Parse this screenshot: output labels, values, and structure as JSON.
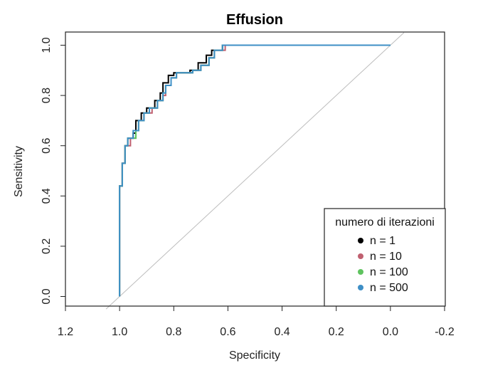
{
  "chart_data": {
    "type": "line",
    "title": "Effusion",
    "xlabel": "Specificity",
    "ylabel": "Sensitivity",
    "xlim": [
      1.2,
      -0.2
    ],
    "ylim": [
      0,
      1
    ],
    "x_reversed": true,
    "x_ticks": [
      {
        "value": 1.2,
        "label": "1.2"
      },
      {
        "value": 1.0,
        "label": "1.0"
      },
      {
        "value": 0.8,
        "label": "0.8"
      },
      {
        "value": 0.6,
        "label": "0.6"
      },
      {
        "value": 0.4,
        "label": "0.4"
      },
      {
        "value": 0.2,
        "label": "0.2"
      },
      {
        "value": 0.0,
        "label": "0.0"
      },
      {
        "value": -0.2,
        "label": "-0.2"
      }
    ],
    "y_ticks": [
      {
        "value": 0.0,
        "label": "0.0"
      },
      {
        "value": 0.2,
        "label": "0.2"
      },
      {
        "value": 0.4,
        "label": "0.4"
      },
      {
        "value": 0.6,
        "label": "0.6"
      },
      {
        "value": 0.8,
        "label": "0.8"
      },
      {
        "value": 1.0,
        "label": "1.0"
      }
    ],
    "reference_line": {
      "from": [
        1.0,
        0.0
      ],
      "to": [
        0.0,
        1.0
      ],
      "color": "#bdbdbd"
    },
    "grid": false,
    "legend": {
      "title": "numero di iterazioni",
      "placement": "bottom-right"
    },
    "series": [
      {
        "name": "n = 1",
        "color": "#000000",
        "points": [
          [
            1.0,
            0.0
          ],
          [
            1.0,
            0.44
          ],
          [
            0.99,
            0.44
          ],
          [
            0.99,
            0.53
          ],
          [
            0.98,
            0.53
          ],
          [
            0.98,
            0.6
          ],
          [
            0.97,
            0.6
          ],
          [
            0.97,
            0.63
          ],
          [
            0.95,
            0.63
          ],
          [
            0.95,
            0.65
          ],
          [
            0.94,
            0.65
          ],
          [
            0.94,
            0.7
          ],
          [
            0.92,
            0.7
          ],
          [
            0.92,
            0.73
          ],
          [
            0.9,
            0.73
          ],
          [
            0.9,
            0.75
          ],
          [
            0.87,
            0.75
          ],
          [
            0.87,
            0.78
          ],
          [
            0.85,
            0.78
          ],
          [
            0.85,
            0.81
          ],
          [
            0.84,
            0.81
          ],
          [
            0.84,
            0.85
          ],
          [
            0.82,
            0.85
          ],
          [
            0.82,
            0.88
          ],
          [
            0.8,
            0.88
          ],
          [
            0.8,
            0.89
          ],
          [
            0.74,
            0.89
          ],
          [
            0.74,
            0.9
          ],
          [
            0.71,
            0.9
          ],
          [
            0.71,
            0.93
          ],
          [
            0.68,
            0.93
          ],
          [
            0.68,
            0.96
          ],
          [
            0.66,
            0.96
          ],
          [
            0.66,
            0.98
          ],
          [
            0.62,
            0.98
          ],
          [
            0.62,
            1.0
          ],
          [
            0.0,
            1.0
          ]
        ]
      },
      {
        "name": "n = 10",
        "color": "#c06070",
        "points": [
          [
            1.0,
            0.0
          ],
          [
            1.0,
            0.44
          ],
          [
            0.99,
            0.44
          ],
          [
            0.99,
            0.53
          ],
          [
            0.98,
            0.53
          ],
          [
            0.98,
            0.6
          ],
          [
            0.96,
            0.6
          ],
          [
            0.96,
            0.63
          ],
          [
            0.94,
            0.63
          ],
          [
            0.94,
            0.66
          ],
          [
            0.93,
            0.66
          ],
          [
            0.93,
            0.7
          ],
          [
            0.91,
            0.7
          ],
          [
            0.91,
            0.73
          ],
          [
            0.88,
            0.73
          ],
          [
            0.88,
            0.75
          ],
          [
            0.86,
            0.75
          ],
          [
            0.86,
            0.78
          ],
          [
            0.84,
            0.78
          ],
          [
            0.84,
            0.8
          ],
          [
            0.83,
            0.8
          ],
          [
            0.83,
            0.84
          ],
          [
            0.81,
            0.84
          ],
          [
            0.81,
            0.87
          ],
          [
            0.79,
            0.87
          ],
          [
            0.79,
            0.89
          ],
          [
            0.73,
            0.89
          ],
          [
            0.73,
            0.9
          ],
          [
            0.7,
            0.9
          ],
          [
            0.7,
            0.92
          ],
          [
            0.67,
            0.92
          ],
          [
            0.67,
            0.95
          ],
          [
            0.65,
            0.95
          ],
          [
            0.65,
            0.98
          ],
          [
            0.61,
            0.98
          ],
          [
            0.61,
            1.0
          ],
          [
            0.0,
            1.0
          ]
        ]
      },
      {
        "name": "n = 100",
        "color": "#5fc35f",
        "points": [
          [
            1.0,
            0.0
          ],
          [
            1.0,
            0.44
          ],
          [
            0.99,
            0.44
          ],
          [
            0.99,
            0.53
          ],
          [
            0.98,
            0.53
          ],
          [
            0.98,
            0.6
          ],
          [
            0.97,
            0.6
          ],
          [
            0.97,
            0.63
          ],
          [
            0.94,
            0.63
          ],
          [
            0.94,
            0.66
          ],
          [
            0.93,
            0.66
          ],
          [
            0.93,
            0.7
          ],
          [
            0.91,
            0.7
          ],
          [
            0.91,
            0.73
          ],
          [
            0.89,
            0.73
          ],
          [
            0.89,
            0.75
          ],
          [
            0.86,
            0.75
          ],
          [
            0.86,
            0.78
          ],
          [
            0.84,
            0.78
          ],
          [
            0.84,
            0.81
          ],
          [
            0.83,
            0.81
          ],
          [
            0.83,
            0.84
          ],
          [
            0.81,
            0.84
          ],
          [
            0.81,
            0.87
          ],
          [
            0.79,
            0.87
          ],
          [
            0.79,
            0.89
          ],
          [
            0.73,
            0.89
          ],
          [
            0.73,
            0.9
          ],
          [
            0.7,
            0.9
          ],
          [
            0.7,
            0.92
          ],
          [
            0.67,
            0.92
          ],
          [
            0.67,
            0.95
          ],
          [
            0.65,
            0.95
          ],
          [
            0.65,
            0.98
          ],
          [
            0.62,
            0.98
          ],
          [
            0.62,
            1.0
          ],
          [
            0.0,
            1.0
          ]
        ]
      },
      {
        "name": "n = 500",
        "color": "#3e8fc6",
        "points": [
          [
            1.0,
            0.0
          ],
          [
            1.0,
            0.44
          ],
          [
            0.99,
            0.44
          ],
          [
            0.99,
            0.53
          ],
          [
            0.98,
            0.53
          ],
          [
            0.98,
            0.6
          ],
          [
            0.97,
            0.6
          ],
          [
            0.97,
            0.63
          ],
          [
            0.95,
            0.63
          ],
          [
            0.95,
            0.66
          ],
          [
            0.93,
            0.66
          ],
          [
            0.93,
            0.7
          ],
          [
            0.91,
            0.7
          ],
          [
            0.91,
            0.73
          ],
          [
            0.89,
            0.73
          ],
          [
            0.89,
            0.75
          ],
          [
            0.86,
            0.75
          ],
          [
            0.86,
            0.78
          ],
          [
            0.84,
            0.78
          ],
          [
            0.84,
            0.81
          ],
          [
            0.83,
            0.81
          ],
          [
            0.83,
            0.84
          ],
          [
            0.81,
            0.84
          ],
          [
            0.81,
            0.87
          ],
          [
            0.79,
            0.87
          ],
          [
            0.79,
            0.89
          ],
          [
            0.73,
            0.89
          ],
          [
            0.73,
            0.9
          ],
          [
            0.7,
            0.9
          ],
          [
            0.7,
            0.92
          ],
          [
            0.67,
            0.92
          ],
          [
            0.67,
            0.95
          ],
          [
            0.65,
            0.95
          ],
          [
            0.65,
            0.98
          ],
          [
            0.62,
            0.98
          ],
          [
            0.62,
            1.0
          ],
          [
            0.0,
            1.0
          ]
        ]
      }
    ]
  }
}
